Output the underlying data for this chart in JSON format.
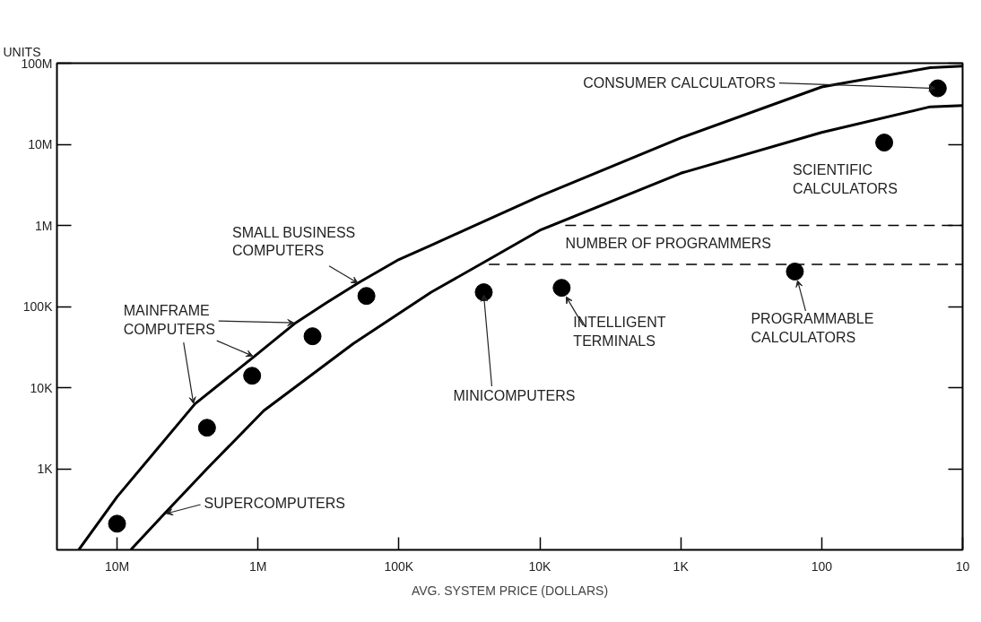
{
  "chart_data": {
    "type": "scatter",
    "xlabel": "AVG. SYSTEM PRICE (DOLLARS)",
    "ylabel": "UNITS",
    "log": "xy",
    "xlim": [
      26700000,
      10
    ],
    "ylim": [
      100,
      100000000
    ],
    "xticks": [
      {
        "value": 10000000,
        "label": "10M"
      },
      {
        "value": 1000000,
        "label": "1M"
      },
      {
        "value": 100000,
        "label": "100K"
      },
      {
        "value": 10000,
        "label": "10K"
      },
      {
        "value": 1000,
        "label": "1K"
      },
      100,
      10
    ],
    "yticks": [
      {
        "value": 100000000,
        "label": "100M"
      },
      {
        "value": 10000000,
        "label": "10M"
      },
      {
        "value": 1000000,
        "label": "1M"
      },
      {
        "value": 100000,
        "label": "100K"
      },
      {
        "value": 10000,
        "label": "10K"
      },
      {
        "value": 1000,
        "label": "1K"
      }
    ],
    "series": [
      {
        "color": "#000000",
        "marker": "circle",
        "x": [
          10000000,
          2300000,
          1100000,
          410000,
          170000,
          25000,
          7000,
          155,
          36,
          15
        ],
        "values": [
          210,
          3200,
          14000,
          43000,
          135000,
          150000,
          170000,
          270000,
          10500000,
          49000000
        ]
      },
      {
        "type": "line",
        "color": "#000000",
        "line_style": "solid",
        "x": [
          18700000,
          10000000,
          2800000,
          1070000,
          540000,
          330000,
          190000,
          100000,
          59000,
          10000,
          1000,
          100,
          17,
          10
        ],
        "values": [
          100,
          450,
          6300,
          24000,
          63000,
          110000,
          200000,
          380000,
          570000,
          2300000,
          12000000,
          51000000,
          88000000,
          92000000
        ]
      },
      {
        "type": "line",
        "color": "#000000",
        "line_style": "solid",
        "x": [
          8000000,
          4600000,
          2300000,
          910000,
          210000,
          59000,
          25000,
          10000,
          1000,
          100,
          17,
          10
        ],
        "values": [
          100,
          280,
          1000,
          5200,
          35000,
          150000,
          350000,
          870000,
          4400000,
          14000000,
          29000000,
          30000000
        ]
      },
      {
        "type": "line",
        "color": "#000000",
        "line_style": "dashed",
        "x": [
          6600,
          10
        ],
        "values": [
          1000000,
          1000000
        ]
      },
      {
        "type": "line",
        "color": "#000000",
        "line_style": "dashed",
        "x": [
          23000,
          10
        ],
        "values": [
          330000,
          330000
        ]
      }
    ],
    "annotations": [
      {
        "text": "CONSUMER CALCULATORS",
        "x": 15,
        "y": 49000000
      },
      {
        "text": "SCIENTIFIC CALCULATORS",
        "x": 36,
        "y": 10500000
      },
      "NUMBER OF PROGRAMMERS",
      {
        "text": "PROGRAMMABLE CALCULATORS",
        "x": 155,
        "y": 270000
      },
      {
        "text": "INTELLIGENT TERMINALS",
        "x": 7000,
        "y": 170000
      },
      {
        "text": "MINICOMPUTERS",
        "x": 25000,
        "y": 150000
      },
      {
        "text": "SMALL BUSINESS COMPUTERS",
        "x": 190000,
        "y": 200000
      },
      {
        "text": "MAINFRAME COMPUTERS",
        "x": 540000,
        "y": 63000
      },
      {
        "text": "SUPERCOMPUTERS",
        "x": 4600000,
        "y": 280
      }
    ]
  }
}
